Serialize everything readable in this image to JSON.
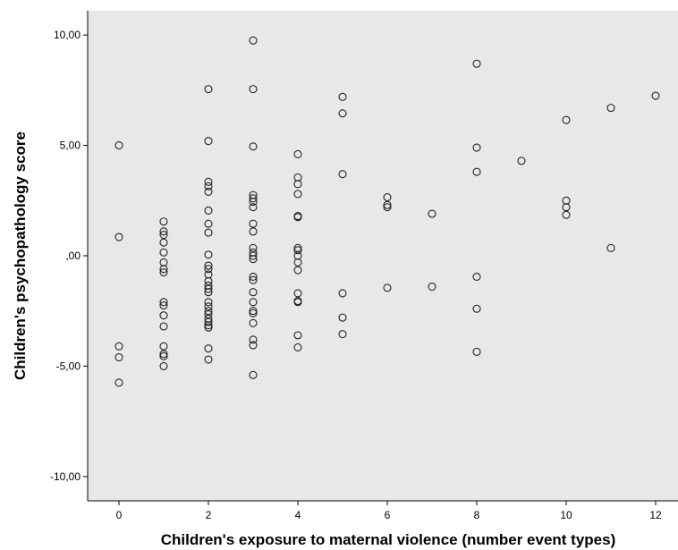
{
  "chart_data": {
    "type": "scatter",
    "xlabel": "Children's exposure to maternal violence (number event types)",
    "ylabel": "Children's psychopathology score",
    "xlim": [
      -0.7,
      12.5
    ],
    "ylim": [
      -11.1,
      11.1
    ],
    "xticks": [
      0,
      2,
      4,
      6,
      8,
      10,
      12
    ],
    "xtick_labels": [
      "0",
      "2",
      "4",
      "6",
      "8",
      "10",
      "12"
    ],
    "yticks": [
      -10,
      -5,
      0,
      5,
      10
    ],
    "ytick_labels": [
      "-10,00",
      "-5,00",
      ",00",
      "5,00",
      "10,00"
    ],
    "plot_background": "#e8e8e8",
    "marker": "open-circle",
    "points": [
      {
        "x": 0,
        "y": 5.0
      },
      {
        "x": 0,
        "y": 0.85
      },
      {
        "x": 0,
        "y": -4.1
      },
      {
        "x": 0,
        "y": -4.6
      },
      {
        "x": 0,
        "y": -5.75
      },
      {
        "x": 1,
        "y": 1.55
      },
      {
        "x": 1,
        "y": 1.1
      },
      {
        "x": 1,
        "y": 0.95
      },
      {
        "x": 1,
        "y": 0.6
      },
      {
        "x": 1,
        "y": 0.15
      },
      {
        "x": 1,
        "y": -0.3
      },
      {
        "x": 1,
        "y": -0.6
      },
      {
        "x": 1,
        "y": -0.75
      },
      {
        "x": 1,
        "y": -2.1
      },
      {
        "x": 1,
        "y": -2.25
      },
      {
        "x": 1,
        "y": -2.7
      },
      {
        "x": 1,
        "y": -3.2
      },
      {
        "x": 1,
        "y": -4.1
      },
      {
        "x": 1,
        "y": -4.45
      },
      {
        "x": 1,
        "y": -4.55
      },
      {
        "x": 1,
        "y": -5.0
      },
      {
        "x": 2,
        "y": 7.55
      },
      {
        "x": 2,
        "y": 5.2
      },
      {
        "x": 2,
        "y": 3.35
      },
      {
        "x": 2,
        "y": 3.15
      },
      {
        "x": 2,
        "y": 2.9
      },
      {
        "x": 2,
        "y": 2.05
      },
      {
        "x": 2,
        "y": 1.45
      },
      {
        "x": 2,
        "y": 1.05
      },
      {
        "x": 2,
        "y": 0.05
      },
      {
        "x": 2,
        "y": -0.45
      },
      {
        "x": 2,
        "y": -0.6
      },
      {
        "x": 2,
        "y": -0.85
      },
      {
        "x": 2,
        "y": -1.15
      },
      {
        "x": 2,
        "y": -1.35
      },
      {
        "x": 2,
        "y": -1.5
      },
      {
        "x": 2,
        "y": -1.65
      },
      {
        "x": 2,
        "y": -2.1
      },
      {
        "x": 2,
        "y": -2.3
      },
      {
        "x": 2,
        "y": -2.5
      },
      {
        "x": 2,
        "y": -2.65
      },
      {
        "x": 2,
        "y": -2.85
      },
      {
        "x": 2,
        "y": -3.0
      },
      {
        "x": 2,
        "y": -3.15
      },
      {
        "x": 2,
        "y": -3.25
      },
      {
        "x": 2,
        "y": -4.2
      },
      {
        "x": 2,
        "y": -4.7
      },
      {
        "x": 3,
        "y": 9.75
      },
      {
        "x": 3,
        "y": 7.55
      },
      {
        "x": 3,
        "y": 4.95
      },
      {
        "x": 3,
        "y": 2.75
      },
      {
        "x": 3,
        "y": 2.6
      },
      {
        "x": 3,
        "y": 2.45
      },
      {
        "x": 3,
        "y": 2.2
      },
      {
        "x": 3,
        "y": 1.45
      },
      {
        "x": 3,
        "y": 1.1
      },
      {
        "x": 3,
        "y": 0.35
      },
      {
        "x": 3,
        "y": 0.15
      },
      {
        "x": 3,
        "y": 0.0
      },
      {
        "x": 3,
        "y": -0.15
      },
      {
        "x": 3,
        "y": -0.95
      },
      {
        "x": 3,
        "y": -1.1
      },
      {
        "x": 3,
        "y": -1.65
      },
      {
        "x": 3,
        "y": -2.1
      },
      {
        "x": 3,
        "y": -2.5
      },
      {
        "x": 3,
        "y": -2.6
      },
      {
        "x": 3,
        "y": -3.05
      },
      {
        "x": 3,
        "y": -3.8
      },
      {
        "x": 3,
        "y": -4.05
      },
      {
        "x": 3,
        "y": -5.4
      },
      {
        "x": 4,
        "y": 4.6
      },
      {
        "x": 4,
        "y": 3.55
      },
      {
        "x": 4,
        "y": 3.25
      },
      {
        "x": 4,
        "y": 2.8
      },
      {
        "x": 4,
        "y": 1.8
      },
      {
        "x": 4,
        "y": 1.75
      },
      {
        "x": 4,
        "y": 0.35
      },
      {
        "x": 4,
        "y": 0.25
      },
      {
        "x": 4,
        "y": 0.0
      },
      {
        "x": 4,
        "y": -0.3
      },
      {
        "x": 4,
        "y": -0.65
      },
      {
        "x": 4,
        "y": -1.7
      },
      {
        "x": 4,
        "y": -2.05
      },
      {
        "x": 4,
        "y": -2.1
      },
      {
        "x": 4,
        "y": -3.6
      },
      {
        "x": 4,
        "y": -4.15
      },
      {
        "x": 5,
        "y": 7.2
      },
      {
        "x": 5,
        "y": 6.45
      },
      {
        "x": 5,
        "y": 3.7
      },
      {
        "x": 5,
        "y": -1.7
      },
      {
        "x": 5,
        "y": -2.8
      },
      {
        "x": 5,
        "y": -3.55
      },
      {
        "x": 6,
        "y": 2.65
      },
      {
        "x": 6,
        "y": 2.3
      },
      {
        "x": 6,
        "y": 2.2
      },
      {
        "x": 6,
        "y": -1.45
      },
      {
        "x": 7,
        "y": 1.9
      },
      {
        "x": 7,
        "y": -1.4
      },
      {
        "x": 8,
        "y": 8.7
      },
      {
        "x": 8,
        "y": 4.9
      },
      {
        "x": 8,
        "y": 3.8
      },
      {
        "x": 8,
        "y": -0.95
      },
      {
        "x": 8,
        "y": -2.4
      },
      {
        "x": 8,
        "y": -4.35
      },
      {
        "x": 9,
        "y": 4.3
      },
      {
        "x": 10,
        "y": 6.15
      },
      {
        "x": 10,
        "y": 2.5
      },
      {
        "x": 10,
        "y": 2.2
      },
      {
        "x": 10,
        "y": 1.85
      },
      {
        "x": 11,
        "y": 6.7
      },
      {
        "x": 11,
        "y": 0.35
      },
      {
        "x": 12,
        "y": 7.25
      }
    ]
  }
}
